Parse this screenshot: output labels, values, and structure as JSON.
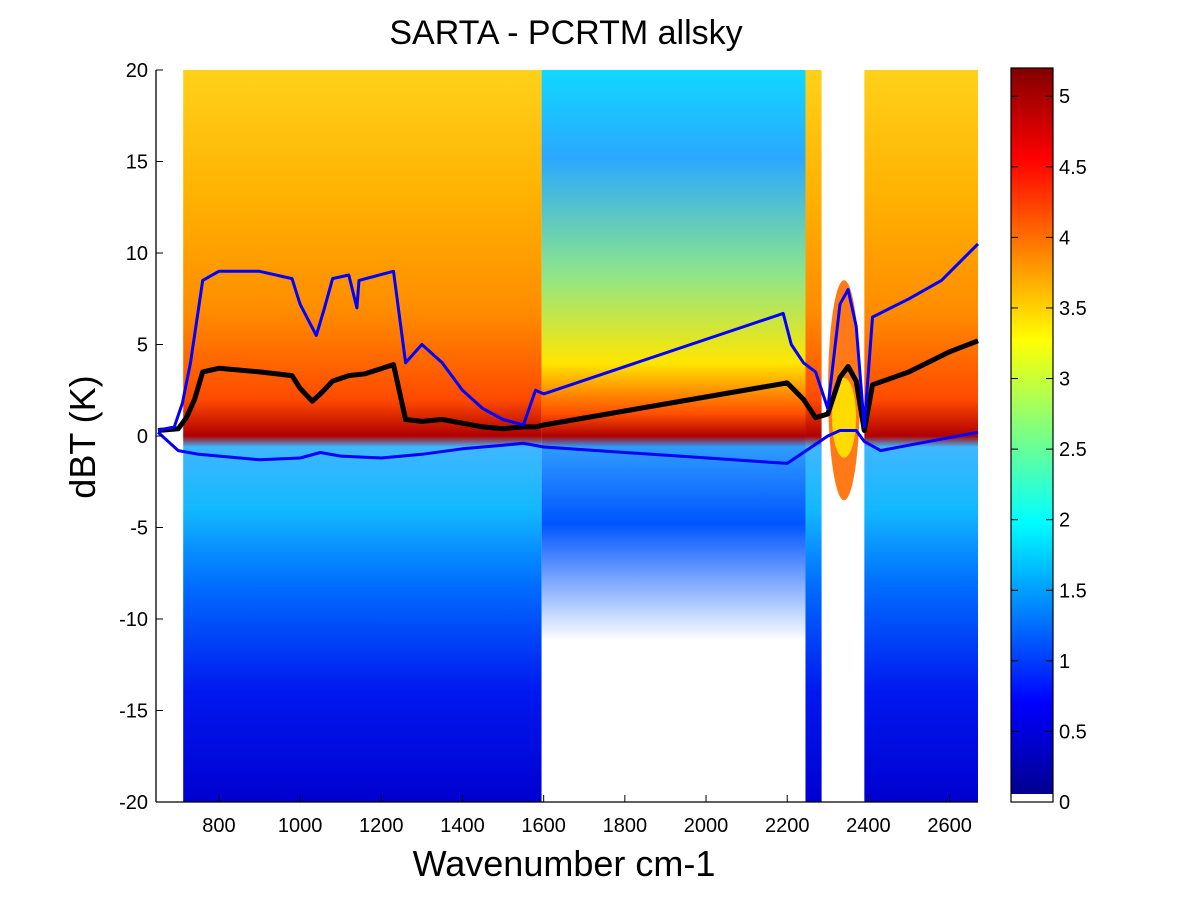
{
  "chart_data": {
    "type": "heatmap",
    "title": "SARTA - PCRTM allsky",
    "xlabel": "Wavenumber cm-1",
    "ylabel": "dBT (K)",
    "xlim": [
      645,
      2670
    ],
    "ylim": [
      -20,
      20
    ],
    "x_ticks": [
      800,
      1000,
      1200,
      1400,
      1600,
      1800,
      2000,
      2200,
      2400,
      2600
    ],
    "y_ticks": [
      -20,
      -15,
      -10,
      -5,
      0,
      5,
      10,
      15,
      20
    ],
    "grid": false,
    "colorbar": {
      "range": [
        0,
        5.2
      ],
      "ticks": [
        0,
        0.5,
        1,
        1.5,
        2,
        2.5,
        3,
        3.5,
        4,
        4.5,
        5
      ],
      "colormap": "jet",
      "colors": [
        "#00008f",
        "#0000ff",
        "#00ffff",
        "#ffff00",
        "#ff0000",
        "#800000"
      ]
    },
    "heatmap_description": "log10 histogram density of brightness-temperature differences per channel; highest density near dBT=0",
    "series": [
      {
        "color": "#000000",
        "points": [
          [
            650,
            0.3
          ],
          [
            700,
            0.4
          ],
          [
            720,
            1.0
          ],
          [
            740,
            2.0
          ],
          [
            760,
            3.5
          ],
          [
            800,
            3.7
          ],
          [
            900,
            3.5
          ],
          [
            980,
            3.3
          ],
          [
            1000,
            2.6
          ],
          [
            1030,
            1.9
          ],
          [
            1050,
            2.3
          ],
          [
            1080,
            3.0
          ],
          [
            1120,
            3.3
          ],
          [
            1160,
            3.4
          ],
          [
            1230,
            3.9
          ],
          [
            1260,
            0.9
          ],
          [
            1300,
            0.8
          ],
          [
            1350,
            0.9
          ],
          [
            1400,
            0.7
          ],
          [
            1450,
            0.5
          ],
          [
            1500,
            0.4
          ],
          [
            1550,
            0.5
          ],
          [
            1580,
            0.5
          ],
          [
            1600,
            0.6
          ],
          [
            2200,
            2.9
          ],
          [
            2240,
            2.0
          ],
          [
            2270,
            1.0
          ],
          [
            2300,
            1.2
          ],
          [
            2330,
            3.2
          ],
          [
            2350,
            3.8
          ],
          [
            2370,
            3.0
          ],
          [
            2390,
            0.3
          ],
          [
            2410,
            2.8
          ],
          [
            2500,
            3.5
          ],
          [
            2600,
            4.6
          ],
          [
            2670,
            5.2
          ]
        ]
      },
      {
        "color": "#0000ff",
        "points": [
          [
            650,
            0.3
          ],
          [
            690,
            0.5
          ],
          [
            710,
            1.8
          ],
          [
            730,
            4.0
          ],
          [
            760,
            8.5
          ],
          [
            800,
            9.0
          ],
          [
            900,
            9.0
          ],
          [
            980,
            8.6
          ],
          [
            1000,
            7.2
          ],
          [
            1040,
            5.5
          ],
          [
            1060,
            7.0
          ],
          [
            1080,
            8.6
          ],
          [
            1120,
            8.8
          ],
          [
            1140,
            7.0
          ],
          [
            1145,
            8.5
          ],
          [
            1230,
            9.0
          ],
          [
            1260,
            4.0
          ],
          [
            1300,
            5.0
          ],
          [
            1350,
            4.0
          ],
          [
            1400,
            2.5
          ],
          [
            1450,
            1.5
          ],
          [
            1500,
            0.9
          ],
          [
            1550,
            0.6
          ],
          [
            1580,
            2.5
          ],
          [
            1600,
            2.3
          ],
          [
            2190,
            6.7
          ],
          [
            2210,
            5.0
          ],
          [
            2240,
            4.0
          ],
          [
            2270,
            3.5
          ],
          [
            2300,
            1.5
          ],
          [
            2330,
            7.2
          ],
          [
            2350,
            8.0
          ],
          [
            2370,
            6.0
          ],
          [
            2390,
            0.5
          ],
          [
            2410,
            6.5
          ],
          [
            2500,
            7.5
          ],
          [
            2580,
            8.5
          ],
          [
            2670,
            10.5
          ]
        ]
      },
      {
        "color": "#0000ff",
        "points": [
          [
            650,
            0.2
          ],
          [
            700,
            -0.8
          ],
          [
            750,
            -1.0
          ],
          [
            900,
            -1.3
          ],
          [
            1000,
            -1.2
          ],
          [
            1050,
            -0.9
          ],
          [
            1100,
            -1.1
          ],
          [
            1200,
            -1.2
          ],
          [
            1300,
            -1.0
          ],
          [
            1400,
            -0.7
          ],
          [
            1500,
            -0.5
          ],
          [
            1550,
            -0.4
          ],
          [
            1600,
            -0.6
          ],
          [
            2200,
            -1.5
          ],
          [
            2260,
            -0.6
          ],
          [
            2300,
            0.0
          ],
          [
            2330,
            0.3
          ],
          [
            2370,
            0.3
          ],
          [
            2390,
            -0.3
          ],
          [
            2430,
            -0.8
          ],
          [
            2500,
            -0.5
          ],
          [
            2670,
            0.2
          ]
        ]
      }
    ]
  }
}
